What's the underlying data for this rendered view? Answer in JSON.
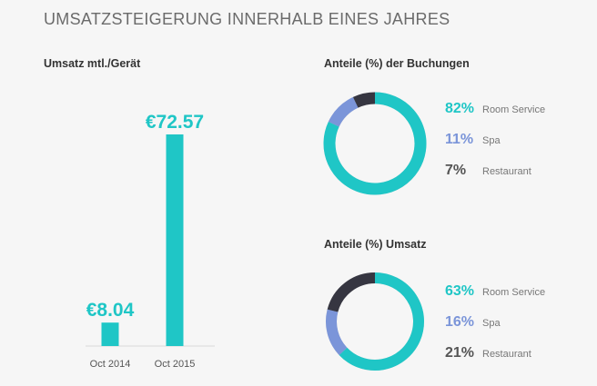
{
  "page_title": "UMSATZSTEIGERUNG INNERHALB EINES JAHRES",
  "colors": {
    "teal": "#1fc6c6",
    "blue": "#7b95d9",
    "dark": "#363641",
    "track": "#cccccc"
  },
  "chart_data": [
    {
      "type": "bar",
      "title": "Umsatz mtl./Gerät",
      "categories": [
        "Oct 2014",
        "Oct 2015"
      ],
      "values": [
        8.04,
        72.57
      ],
      "data_labels": [
        "€8.04",
        "€72.57"
      ],
      "ylim": [
        0,
        75
      ],
      "xlabel": "",
      "ylabel": ""
    },
    {
      "type": "pie",
      "title": "Anteile (%) der Buchungen",
      "categories": [
        "Room Service",
        "Spa",
        "Restaurant"
      ],
      "values": [
        82,
        11,
        7
      ],
      "labels": [
        "82%",
        "11%",
        "7%"
      ]
    },
    {
      "type": "pie",
      "title": "Anteile (%) Umsatz",
      "categories": [
        "Room Service",
        "Spa",
        "Restaurant"
      ],
      "values": [
        63,
        16,
        21
      ],
      "labels": [
        "63%",
        "16%",
        "21%"
      ]
    }
  ]
}
